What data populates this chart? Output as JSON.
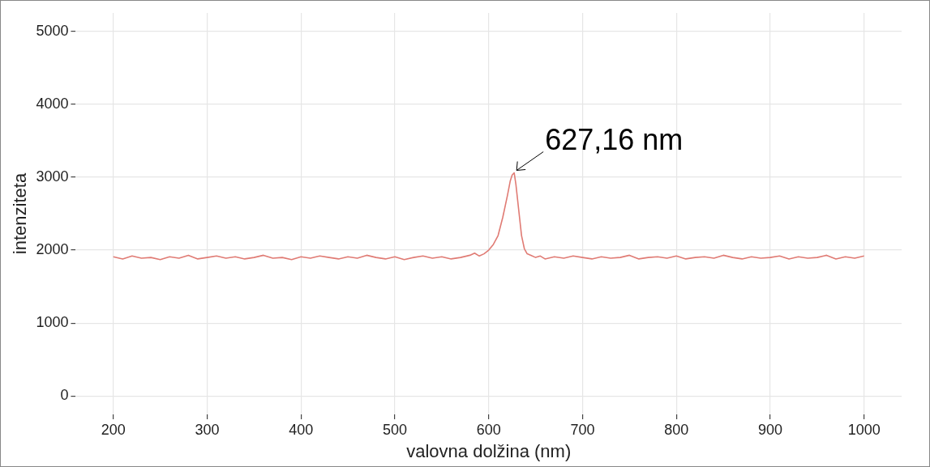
{
  "chart_data": {
    "type": "line",
    "xlabel": "valovna dolžina (nm)",
    "ylabel": "intenziteta",
    "x": [
      200,
      210,
      220,
      230,
      240,
      250,
      260,
      270,
      280,
      290,
      300,
      310,
      320,
      330,
      340,
      350,
      360,
      370,
      380,
      390,
      400,
      410,
      420,
      430,
      440,
      450,
      460,
      470,
      480,
      490,
      500,
      510,
      520,
      530,
      540,
      550,
      560,
      570,
      580,
      585,
      590,
      595,
      600,
      605,
      610,
      615,
      620,
      623,
      625,
      627.16,
      629,
      632,
      635,
      638,
      641,
      645,
      650,
      655,
      660,
      670,
      680,
      690,
      700,
      710,
      720,
      730,
      740,
      750,
      760,
      770,
      780,
      790,
      800,
      810,
      820,
      830,
      840,
      850,
      860,
      870,
      880,
      890,
      900,
      910,
      920,
      930,
      940,
      950,
      960,
      970,
      980,
      990,
      1000
    ],
    "series": [
      {
        "color": "#e07b74",
        "values": [
          1910,
          1880,
          1920,
          1890,
          1900,
          1870,
          1910,
          1890,
          1930,
          1880,
          1900,
          1920,
          1890,
          1910,
          1880,
          1900,
          1930,
          1890,
          1900,
          1870,
          1910,
          1890,
          1920,
          1900,
          1880,
          1910,
          1890,
          1930,
          1900,
          1880,
          1910,
          1870,
          1900,
          1920,
          1890,
          1910,
          1880,
          1900,
          1930,
          1960,
          1920,
          1950,
          2000,
          2080,
          2200,
          2450,
          2750,
          2950,
          3030,
          3060,
          2900,
          2550,
          2200,
          2020,
          1950,
          1930,
          1900,
          1920,
          1880,
          1910,
          1890,
          1920,
          1900,
          1880,
          1910,
          1890,
          1900,
          1930,
          1880,
          1900,
          1910,
          1890,
          1920,
          1880,
          1900,
          1910,
          1890,
          1930,
          1900,
          1880,
          1910,
          1890,
          1900,
          1920,
          1880,
          1910,
          1890,
          1900,
          1930,
          1880,
          1910,
          1890,
          1920
        ]
      }
    ],
    "xlim": [
      160,
      1040
    ],
    "ylim": [
      -250,
      5250
    ],
    "xticks": [
      200,
      300,
      400,
      500,
      600,
      700,
      800,
      900,
      1000
    ],
    "yticks": [
      0,
      1000,
      2000,
      3000,
      4000,
      5000
    ],
    "grid": true,
    "legend": false,
    "marker": "none",
    "line_style": "solid",
    "annotations": [
      {
        "text": "627,16 nm",
        "x": 627.16,
        "y": 3060
      }
    ]
  }
}
